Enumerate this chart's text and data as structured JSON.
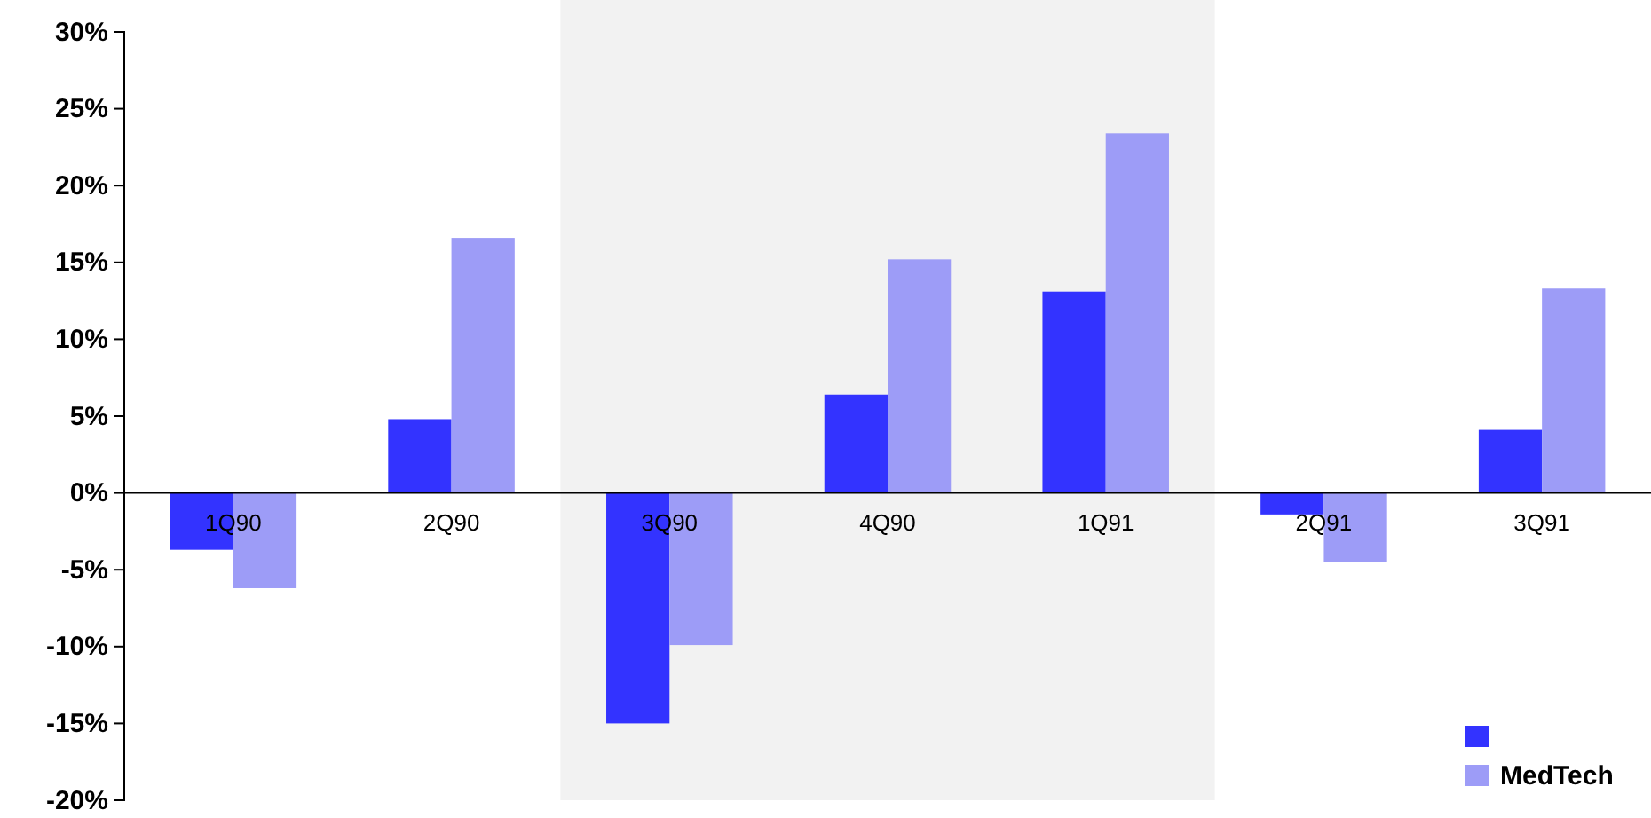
{
  "chart_data": {
    "type": "bar",
    "categories": [
      "1Q90",
      "2Q90",
      "3Q90",
      "4Q90",
      "1Q91",
      "2Q91",
      "3Q91"
    ],
    "series": [
      {
        "color": "#3333ff",
        "values": [
          -3.7,
          4.8,
          -15.0,
          6.4,
          13.1,
          -1.4,
          4.1
        ]
      },
      {
        "name": "MedTech",
        "color": "#9d9cf7",
        "values": [
          -6.2,
          16.6,
          -9.9,
          15.2,
          23.4,
          -4.5,
          13.3
        ]
      }
    ],
    "ylim": [
      -20,
      30
    ],
    "yticks": [
      {
        "value": -20,
        "label": "-20%"
      },
      {
        "value": -15,
        "label": "-15%"
      },
      {
        "value": -10,
        "label": "-10%"
      },
      {
        "value": -5,
        "label": "-5%"
      },
      {
        "value": 0,
        "label": "0%"
      },
      {
        "value": 5,
        "label": "5%"
      },
      {
        "value": 10,
        "label": "10%"
      },
      {
        "value": 15,
        "label": "15%"
      },
      {
        "value": 20,
        "label": "20%"
      },
      {
        "value": 25,
        "label": "25%"
      },
      {
        "value": 30,
        "label": "30%"
      }
    ],
    "bands": [
      {
        "axis": "x",
        "from": "3Q90",
        "to": "1Q91",
        "color": "#f2f2f2"
      }
    ],
    "legend": "bottom right",
    "grid": false
  }
}
